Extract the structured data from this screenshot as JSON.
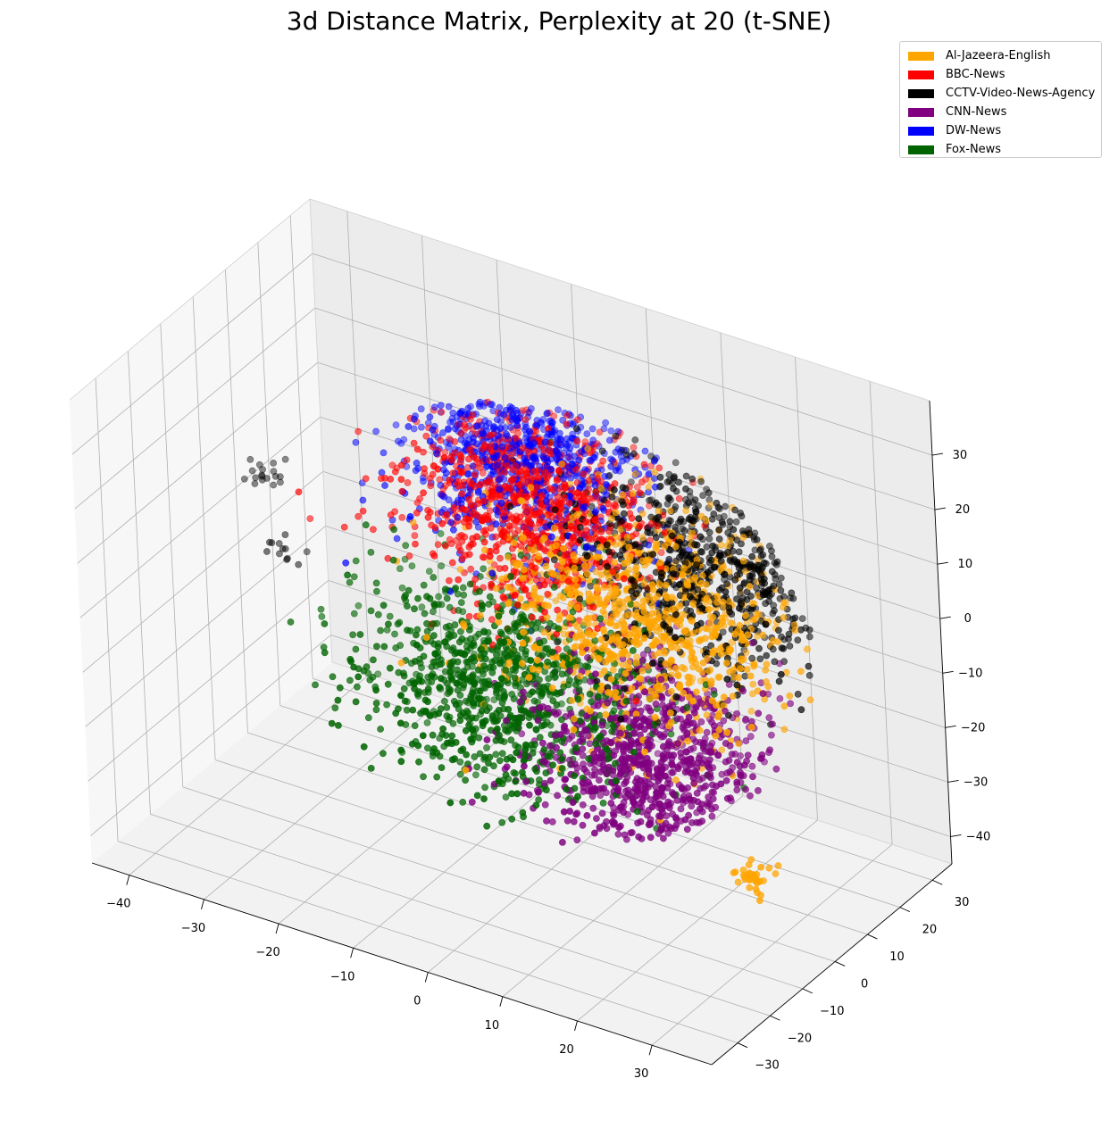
{
  "chart_data": {
    "type": "scatter",
    "projection": "3d",
    "title": "3d Distance Matrix, Perplexity at 20 (t-SNE)",
    "xlabel": "",
    "ylabel": "",
    "zlabel": "",
    "xlim": [
      -45,
      38
    ],
    "ylim": [
      -38,
      36
    ],
    "zlim": [
      -45,
      40
    ],
    "x_ticks": [
      -40,
      -30,
      -20,
      -10,
      0,
      10,
      20,
      30
    ],
    "y_ticks": [
      -30,
      -20,
      -10,
      0,
      10,
      20,
      30
    ],
    "z_ticks": [
      -40,
      -30,
      -20,
      -10,
      0,
      10,
      20,
      30
    ],
    "x_tick_labels": [
      "−40",
      "−30",
      "−20",
      "−10",
      "0",
      "10",
      "20",
      "30"
    ],
    "y_tick_labels": [
      "−30",
      "−20",
      "−10",
      "0",
      "10",
      "20",
      "30"
    ],
    "z_tick_labels": [
      "−40",
      "−30",
      "−20",
      "−10",
      "0",
      "10",
      "20",
      "30"
    ],
    "grid": true,
    "legend_position": "top-right",
    "approx_points_per_series": 1000,
    "series": [
      {
        "name": "Al-Jazeera-English",
        "color": "#FFA500",
        "center": [
          14,
          2,
          6
        ],
        "spread": 17,
        "clusters": [
          {
            "center": [
              30,
              -6,
              -30
            ],
            "count": 35,
            "spread": 1.5
          }
        ]
      },
      {
        "name": "BBC-News",
        "color": "#FF0000",
        "center": [
          -4,
          8,
          16
        ],
        "spread": 14
      },
      {
        "name": "CCTV-Video-News-Agency",
        "color": "#000000",
        "center": [
          18,
          14,
          12
        ],
        "spread": 16,
        "clusters": [
          {
            "center": [
              -40,
              8,
              6
            ],
            "count": 18,
            "spread": 1.5
          },
          {
            "center": [
              -36,
              4,
              -4
            ],
            "count": 12,
            "spread": 1.5
          }
        ]
      },
      {
        "name": "CNN-News",
        "color": "#800080",
        "center": [
          16,
          -4,
          -16
        ],
        "spread": 14
      },
      {
        "name": "DW-News",
        "color": "#0000FF",
        "center": [
          -8,
          14,
          22
        ],
        "spread": 14
      },
      {
        "name": "Fox-News",
        "color": "#006400",
        "center": [
          -2,
          -8,
          -8
        ],
        "spread": 16
      }
    ]
  }
}
